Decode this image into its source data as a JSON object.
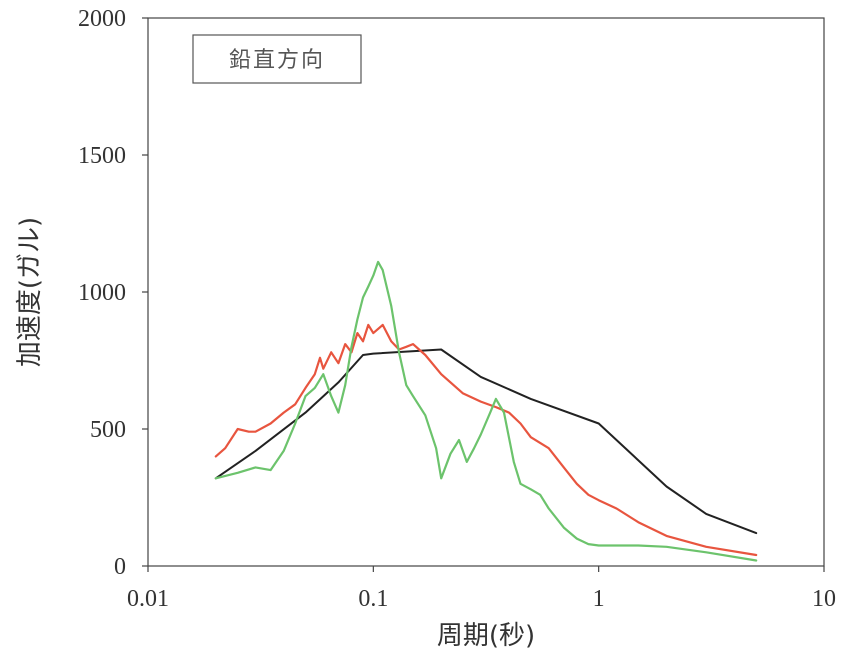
{
  "chart_data": {
    "type": "line",
    "xscale": "log",
    "xlim": [
      0.01,
      10
    ],
    "ylim": [
      0,
      2000
    ],
    "xlabel": "周期(秒)",
    "ylabel": "加速度(ガル)",
    "xticks": [
      "0.01",
      "0.1",
      "1",
      "10"
    ],
    "yticks": [
      "0",
      "500",
      "1000",
      "1500",
      "2000"
    ],
    "grid": false,
    "legend": {
      "text": "鉛直方向",
      "placement": "top-left"
    },
    "series": [
      {
        "color": "#222222",
        "points": [
          [
            0.02,
            320
          ],
          [
            0.03,
            420
          ],
          [
            0.05,
            560
          ],
          [
            0.07,
            670
          ],
          [
            0.09,
            770
          ],
          [
            0.1,
            775
          ],
          [
            0.2,
            790
          ],
          [
            0.3,
            690
          ],
          [
            0.5,
            610
          ],
          [
            1.0,
            520
          ],
          [
            2.0,
            290
          ],
          [
            3.0,
            190
          ],
          [
            5.0,
            120
          ]
        ]
      },
      {
        "color": "#e8553f",
        "points": [
          [
            0.02,
            400
          ],
          [
            0.022,
            430
          ],
          [
            0.025,
            500
          ],
          [
            0.028,
            490
          ],
          [
            0.03,
            490
          ],
          [
            0.035,
            520
          ],
          [
            0.04,
            560
          ],
          [
            0.045,
            590
          ],
          [
            0.05,
            650
          ],
          [
            0.055,
            700
          ],
          [
            0.058,
            760
          ],
          [
            0.06,
            720
          ],
          [
            0.065,
            780
          ],
          [
            0.07,
            740
          ],
          [
            0.075,
            810
          ],
          [
            0.08,
            780
          ],
          [
            0.085,
            850
          ],
          [
            0.09,
            820
          ],
          [
            0.095,
            880
          ],
          [
            0.1,
            850
          ],
          [
            0.11,
            880
          ],
          [
            0.12,
            820
          ],
          [
            0.13,
            790
          ],
          [
            0.14,
            800
          ],
          [
            0.15,
            810
          ],
          [
            0.17,
            770
          ],
          [
            0.2,
            700
          ],
          [
            0.25,
            630
          ],
          [
            0.3,
            600
          ],
          [
            0.35,
            580
          ],
          [
            0.4,
            560
          ],
          [
            0.45,
            520
          ],
          [
            0.5,
            470
          ],
          [
            0.6,
            430
          ],
          [
            0.7,
            360
          ],
          [
            0.8,
            300
          ],
          [
            0.9,
            260
          ],
          [
            1.0,
            240
          ],
          [
            1.2,
            210
          ],
          [
            1.5,
            160
          ],
          [
            2.0,
            110
          ],
          [
            3.0,
            70
          ],
          [
            5.0,
            40
          ]
        ]
      },
      {
        "color": "#6cc36c",
        "points": [
          [
            0.02,
            320
          ],
          [
            0.025,
            340
          ],
          [
            0.03,
            360
          ],
          [
            0.035,
            350
          ],
          [
            0.04,
            420
          ],
          [
            0.045,
            520
          ],
          [
            0.05,
            620
          ],
          [
            0.055,
            650
          ],
          [
            0.06,
            700
          ],
          [
            0.065,
            620
          ],
          [
            0.07,
            560
          ],
          [
            0.075,
            660
          ],
          [
            0.08,
            800
          ],
          [
            0.085,
            900
          ],
          [
            0.09,
            980
          ],
          [
            0.095,
            1020
          ],
          [
            0.1,
            1060
          ],
          [
            0.105,
            1110
          ],
          [
            0.11,
            1080
          ],
          [
            0.12,
            950
          ],
          [
            0.13,
            780
          ],
          [
            0.14,
            660
          ],
          [
            0.15,
            620
          ],
          [
            0.17,
            550
          ],
          [
            0.19,
            430
          ],
          [
            0.2,
            320
          ],
          [
            0.22,
            410
          ],
          [
            0.24,
            460
          ],
          [
            0.26,
            380
          ],
          [
            0.28,
            430
          ],
          [
            0.3,
            480
          ],
          [
            0.33,
            560
          ],
          [
            0.35,
            610
          ],
          [
            0.38,
            560
          ],
          [
            0.42,
            380
          ],
          [
            0.45,
            300
          ],
          [
            0.5,
            280
          ],
          [
            0.55,
            260
          ],
          [
            0.6,
            210
          ],
          [
            0.7,
            140
          ],
          [
            0.8,
            100
          ],
          [
            0.9,
            80
          ],
          [
            1.0,
            75
          ],
          [
            1.5,
            75
          ],
          [
            2.0,
            70
          ],
          [
            3.0,
            50
          ],
          [
            5.0,
            20
          ]
        ]
      }
    ]
  }
}
